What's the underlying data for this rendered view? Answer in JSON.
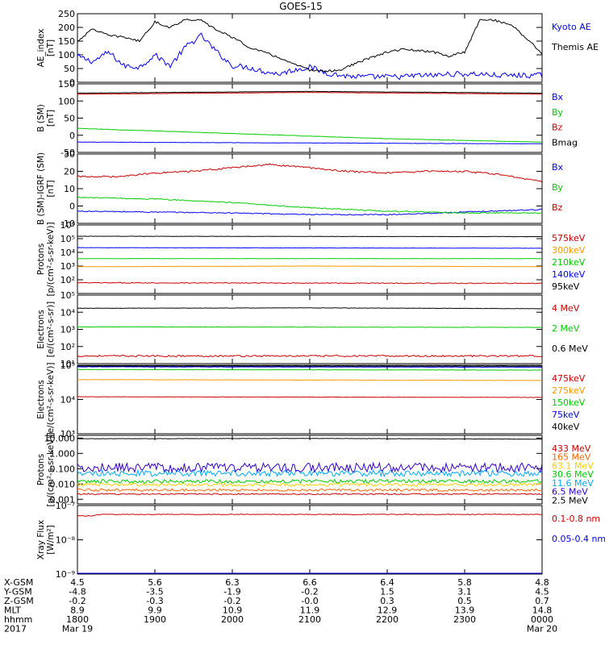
{
  "chart_data": {
    "title": "GOES-15",
    "x_range_hours": [
      0,
      6
    ],
    "panels": [
      {
        "type": "line",
        "ylabel": [
          "AE_index",
          "[nT]"
        ],
        "ylim": [
          0,
          250
        ],
        "scale": "linear",
        "ticks": [
          0,
          50,
          100,
          150,
          200,
          250
        ],
        "tick_labels": [
          "0",
          "50",
          "100",
          "150",
          "200",
          "250"
        ],
        "series": [
          {
            "name": "Kyoto AE",
            "color": "#0000ff",
            "noise": 10,
            "x": [
              0,
              0.2,
              0.4,
              0.6,
              0.8,
              1.0,
              1.2,
              1.4,
              1.6,
              1.8,
              2.0,
              2.2,
              2.4,
              2.6,
              2.8,
              3.0,
              3.2,
              3.4,
              3.6,
              3.8,
              4.0,
              4.2,
              4.4,
              4.6,
              4.8,
              5.0,
              5.2,
              5.4,
              5.6,
              5.8,
              6.0
            ],
            "y": [
              95,
              75,
              110,
              60,
              55,
              100,
              60,
              130,
              170,
              110,
              60,
              55,
              40,
              30,
              45,
              55,
              35,
              25,
              20,
              20,
              20,
              20,
              25,
              25,
              30,
              30,
              30,
              25,
              25,
              25,
              25
            ]
          },
          {
            "name": "Themis AE",
            "color": "#000000",
            "noise": 4,
            "x": [
              0,
              0.2,
              0.4,
              0.6,
              0.8,
              1.0,
              1.2,
              1.4,
              1.6,
              1.8,
              2.0,
              2.2,
              2.4,
              2.6,
              2.8,
              3.0,
              3.2,
              3.4,
              3.6,
              3.8,
              4.0,
              4.2,
              4.4,
              4.6,
              4.8,
              5.0,
              5.2,
              5.4,
              5.6,
              5.8,
              6.0
            ],
            "y": [
              150,
              195,
              170,
              165,
              150,
              220,
              200,
              230,
              225,
              190,
              165,
              130,
              110,
              90,
              65,
              45,
              40,
              45,
              70,
              90,
              110,
              120,
              115,
              110,
              95,
              110,
              230,
              225,
              210,
              160,
              105
            ]
          }
        ]
      },
      {
        "type": "line",
        "ylabel": [
          "B (SM)",
          "[nT]"
        ],
        "ylim": [
          -50,
          150
        ],
        "scale": "linear",
        "ticks": [
          -50,
          0,
          50,
          100,
          150
        ],
        "tick_labels": [
          "-50",
          "0",
          "50",
          "100",
          "150"
        ],
        "series": [
          {
            "name": "Bx",
            "color": "#0000ff",
            "noise": 0.5,
            "x": [
              0,
              6
            ],
            "y": [
              -20,
              -25
            ]
          },
          {
            "name": "By",
            "color": "#00cc00",
            "noise": 0.5,
            "x": [
              0,
              2,
              4,
              6
            ],
            "y": [
              20,
              5,
              -10,
              -20
            ]
          },
          {
            "name": "Bz",
            "color": "#cc0000",
            "noise": 0.4,
            "x": [
              0,
              3,
              6
            ],
            "y": [
              120,
              125,
              120
            ]
          },
          {
            "name": "Bmag",
            "color": "#000000",
            "noise": 0.4,
            "x": [
              0,
              3,
              6
            ],
            "y": [
              123,
              128,
              123
            ]
          }
        ]
      },
      {
        "type": "line",
        "ylabel": [
          "B (SM)-IGRF (SM)",
          "[nT]"
        ],
        "ylim": [
          -10,
          30
        ],
        "scale": "linear",
        "ticks": [
          -10,
          0,
          10,
          20,
          30
        ],
        "tick_labels": [
          "-10",
          "0",
          "10",
          "20",
          "30"
        ],
        "series": [
          {
            "name": "Bx",
            "color": "#0000ff",
            "noise": 0.3,
            "x": [
              0,
              2,
              3,
              4,
              6
            ],
            "y": [
              -3,
              -4,
              -5,
              -5,
              -2
            ]
          },
          {
            "name": "By",
            "color": "#00cc00",
            "noise": 0.3,
            "x": [
              0,
              1,
              2,
              3,
              4,
              5,
              6
            ],
            "y": [
              5,
              4,
              2,
              -1,
              -3,
              -4,
              -4
            ]
          },
          {
            "name": "Bz",
            "color": "#cc0000",
            "noise": 0.5,
            "x": [
              0,
              0.5,
              1,
              1.5,
              2,
              2.5,
              3,
              3.5,
              4,
              4.5,
              5,
              5.5,
              6
            ],
            "y": [
              17,
              17,
              19,
              20,
              22,
              24,
              22,
              20,
              19,
              20,
              20,
              18,
              14
            ]
          }
        ]
      },
      {
        "type": "line",
        "ylabel": [
          "Protons",
          "[p/(cm²-s-sr-keV)]"
        ],
        "ylim": [
          10,
          1000000
        ],
        "scale": "log",
        "ticks": [
          100,
          1000,
          10000,
          100000,
          1000000
        ],
        "tick_labels": [
          "10²",
          "10³",
          "10⁴",
          "10⁵",
          "10⁶"
        ],
        "series": [
          {
            "name": "575keV",
            "color": "#cc0000",
            "noise": 0.03,
            "x": [
              0,
              6
            ],
            "y": [
              60,
              55
            ]
          },
          {
            "name": "300keV",
            "color": "#ff9900",
            "noise": 0.01,
            "x": [
              0,
              3,
              6
            ],
            "y": [
              900,
              1000,
              900
            ]
          },
          {
            "name": "210keV",
            "color": "#00cc00",
            "noise": 0.01,
            "x": [
              0,
              6
            ],
            "y": [
              3500,
              3500
            ]
          },
          {
            "name": "140keV",
            "color": "#0000ff",
            "noise": 0.01,
            "x": [
              0,
              6
            ],
            "y": [
              22000,
              20000
            ]
          },
          {
            "name": "95keV",
            "color": "#000000",
            "noise": 0.01,
            "x": [
              0,
              6
            ],
            "y": [
              150000,
              140000
            ]
          }
        ]
      },
      {
        "type": "line",
        "ylabel": [
          "Electrons",
          "[e/(cm²-s-sr)]"
        ],
        "ylim": [
          10,
          100000
        ],
        "scale": "log",
        "ticks": [
          10,
          100,
          1000,
          10000,
          100000
        ],
        "tick_labels": [
          "10¹",
          "10²",
          "10³",
          "10⁴",
          "10⁵"
        ],
        "series": [
          {
            "name": "4 MeV",
            "color": "#cc0000",
            "noise": 0.05,
            "x": [
              0,
              6
            ],
            "y": [
              28,
              28
            ]
          },
          {
            "name": "2 MeV",
            "color": "#00cc00",
            "noise": 0.01,
            "x": [
              0,
              6
            ],
            "y": [
              1400,
              1300
            ]
          },
          {
            "name": "0.6 MeV",
            "color": "#000000",
            "noise": 0.01,
            "x": [
              0,
              3,
              6
            ],
            "y": [
              17000,
              18000,
              16000
            ]
          }
        ]
      },
      {
        "type": "line",
        "ylabel": [
          "Electrons",
          "[e/(cm²-s-sr-keV)]"
        ],
        "ylim": [
          1000,
          100000
        ],
        "scale": "log",
        "ticks": [
          1000,
          10000,
          100000
        ],
        "tick_labels": [
          "10³",
          "10⁴",
          "10⁵"
        ],
        "series": [
          {
            "name": "475keV",
            "color": "#cc0000",
            "noise": 0.005,
            "x": [
              0,
              6
            ],
            "y": [
              12000,
              11500
            ]
          },
          {
            "name": "275keV",
            "color": "#ff9900",
            "noise": 0.005,
            "x": [
              0,
              6
            ],
            "y": [
              38000,
              36000
            ]
          },
          {
            "name": "150keV",
            "color": "#00cc00",
            "noise": 0.005,
            "x": [
              0,
              6
            ],
            "y": [
              75000,
              72000
            ]
          },
          {
            "name": "75keV",
            "color": "#0000ff",
            "noise": 0.005,
            "x": [
              0,
              6
            ],
            "y": [
              90000,
              88000
            ]
          },
          {
            "name": "40keV",
            "color": "#000000",
            "noise": 0.005,
            "x": [
              0,
              6
            ],
            "y": [
              95000,
              94000
            ]
          }
        ]
      },
      {
        "type": "line",
        "ylabel": [
          "Protons",
          "[p/(cm²-s-sr-keV)]"
        ],
        "ylim": [
          0.0005,
          15
        ],
        "scale": "log",
        "ticks": [
          0.001,
          0.01,
          0.1,
          1,
          10
        ],
        "tick_labels": [
          "0.001",
          "0.010",
          "0.100",
          "1.000",
          "10.000"
        ],
        "series": [
          {
            "name": "433 MeV",
            "color": "#cc0000",
            "noise": 0.04,
            "x": [
              0,
              6
            ],
            "y": [
              0.0022,
              0.0022
            ]
          },
          {
            "name": "165 MeV",
            "color": "#ff6600",
            "noise": 0.08,
            "x": [
              0,
              6
            ],
            "y": [
              0.004,
              0.004
            ]
          },
          {
            "name": "63.1 MeV",
            "color": "#ffcc00",
            "noise": 0.1,
            "x": [
              0,
              6
            ],
            "y": [
              0.009,
              0.009
            ]
          },
          {
            "name": "30.6 MeV",
            "color": "#00cc00",
            "noise": 0.12,
            "x": [
              0,
              6
            ],
            "y": [
              0.015,
              0.015
            ]
          },
          {
            "name": "11.6 MeV",
            "color": "#00aaff",
            "noise": 0.2,
            "x": [
              0,
              6
            ],
            "y": [
              0.05,
              0.05
            ]
          },
          {
            "name": "6.5 MeV",
            "color": "#3300cc",
            "noise": 0.3,
            "x": [
              0,
              6
            ],
            "y": [
              0.12,
              0.12
            ]
          },
          {
            "name": "2.5 MeV",
            "color": "#000000",
            "noise": 0.01,
            "x": [
              0,
              3,
              6
            ],
            "y": [
              9,
              9.5,
              8.5
            ]
          }
        ]
      },
      {
        "type": "line",
        "ylabel": [
          "Xray Flux",
          "[W/m²]"
        ],
        "ylim": [
          1e-09,
          1e-07
        ],
        "scale": "log",
        "ticks": [
          1e-09,
          1e-08,
          1e-07
        ],
        "tick_labels": [
          "10⁻⁹",
          "10⁻⁸",
          "10⁻⁷"
        ],
        "series": [
          {
            "name": "0.1-0.8 nm",
            "color": "#cc0000",
            "noise": 0.01,
            "x": [
              0,
              0.2,
              0.3,
              3,
              6
            ],
            "y": [
              5e-08,
              5e-08,
              5.5e-08,
              5.5e-08,
              5.5e-08
            ]
          },
          {
            "name": "0.05-0.4 nm",
            "color": "#0000ff",
            "noise": 0,
            "x": [
              0,
              6
            ],
            "y": [
              1e-09,
              1e-09
            ]
          }
        ]
      }
    ],
    "ephemeris": {
      "rows": [
        {
          "label": "X-GSM",
          "values": [
            "4.5",
            "5.6",
            "6.3",
            "6.6",
            "6.4",
            "5.8",
            "4.8"
          ]
        },
        {
          "label": "Y-GSM",
          "values": [
            "-4.8",
            "-3.5",
            "-1.9",
            "-0.2",
            "1.5",
            "3.1",
            "4.5"
          ]
        },
        {
          "label": "Z-GSM",
          "values": [
            "-0.2",
            "-0.3",
            "-0.2",
            "-0.0",
            "0.3",
            "0.5",
            "0.7"
          ]
        },
        {
          "label": "MLT",
          "values": [
            "8.9",
            "9.9",
            "10.9",
            "11.9",
            "12.9",
            "13.9",
            "14.8"
          ]
        },
        {
          "label": "hhmm",
          "values": [
            "1800",
            "1900",
            "2000",
            "2100",
            "2200",
            "2300",
            "0000"
          ]
        },
        {
          "label": "2017",
          "values": [
            "Mar 19",
            "",
            "",
            "",
            "",
            "",
            "Mar 20"
          ]
        }
      ]
    }
  }
}
